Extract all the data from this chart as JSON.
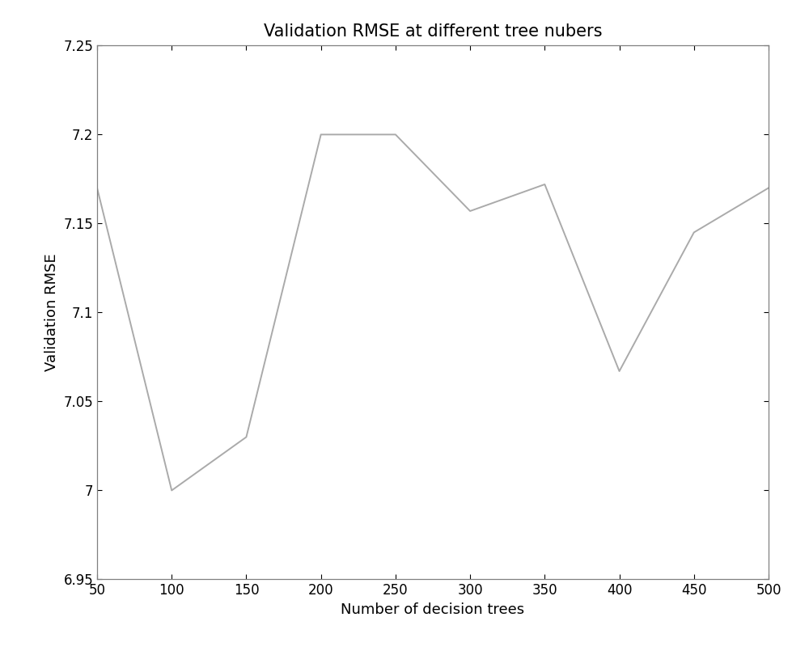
{
  "x": [
    50,
    100,
    150,
    200,
    250,
    300,
    350,
    400,
    450,
    500
  ],
  "y": [
    7.17,
    7.0,
    7.03,
    7.2,
    7.2,
    7.157,
    7.172,
    7.067,
    7.145,
    7.17
  ],
  "title": "Validation RMSE at different tree nubers",
  "xlabel": "Number of decision trees",
  "ylabel": "Validation RMSE",
  "xlim": [
    50,
    500
  ],
  "ylim": [
    6.95,
    7.25
  ],
  "xticks": [
    50,
    100,
    150,
    200,
    250,
    300,
    350,
    400,
    450,
    500
  ],
  "yticks": [
    6.95,
    7.0,
    7.05,
    7.1,
    7.15,
    7.2,
    7.25
  ],
  "ytick_labels": [
    "6.95",
    "7",
    "7.05",
    "7.1",
    "7.15",
    "7.2",
    "7.25"
  ],
  "line_color": "#aaaaaa",
  "spine_color": "#808080",
  "background_color": "#ffffff",
  "title_fontsize": 15,
  "label_fontsize": 13,
  "tick_fontsize": 12,
  "line_width": 1.4
}
